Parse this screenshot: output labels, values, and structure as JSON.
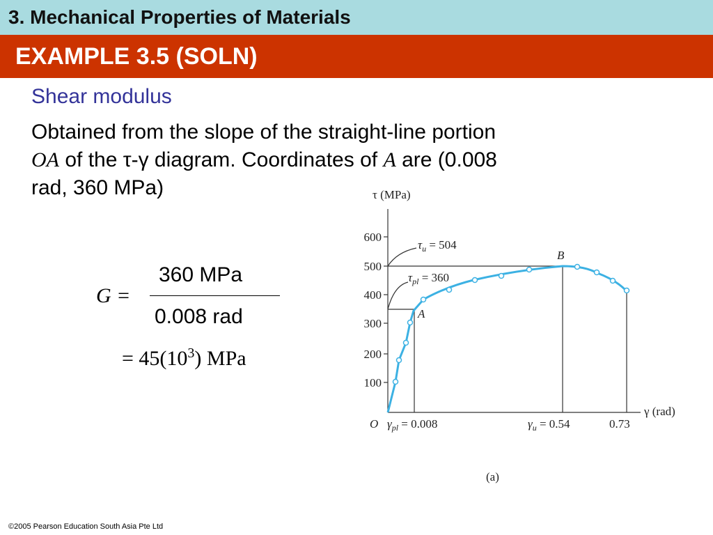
{
  "header": {
    "title": "3. Mechanical Properties of Materials",
    "subtitle": "EXAMPLE 3.5 (SOLN)"
  },
  "body": {
    "heading": "Shear modulus",
    "line1": "Obtained from the slope of the straight-line portion",
    "oa": "OA",
    "line2": "of the τ-γ diagram. Coordinates of",
    "a": "A",
    "line2end": "are (0.008",
    "line3": "rad, 360 MPa)"
  },
  "equation": {
    "lhs": "G =",
    "numerator": "360 MPa",
    "denominator": "0.008 rad",
    "result_start": "= 45(10",
    "result_exp": "3",
    "result_end": ") MPa"
  },
  "figure": {
    "y_label": "τ (MPa)",
    "x_label": "γ (rad)",
    "origin": "O",
    "yticks": [
      100,
      200,
      300,
      400,
      500,
      600
    ],
    "tau_u": {
      "symbol": "τ",
      "sub": "u",
      "text": " = 504"
    },
    "tau_pl": {
      "symbol": "τ",
      "sub": "pl",
      "text": " = 360"
    },
    "point_a": "A",
    "point_b": "B",
    "gamma_pl": {
      "symbol": "γ",
      "sub": "pl",
      "text": " = 0.008"
    },
    "gamma_u": {
      "symbol": "γ",
      "sub": "u",
      "text": " = 0.54"
    },
    "gamma_end": "0.73",
    "caption": "(a)"
  },
  "footer": "©2005 Pearson Education South Asia Pte Ltd"
}
